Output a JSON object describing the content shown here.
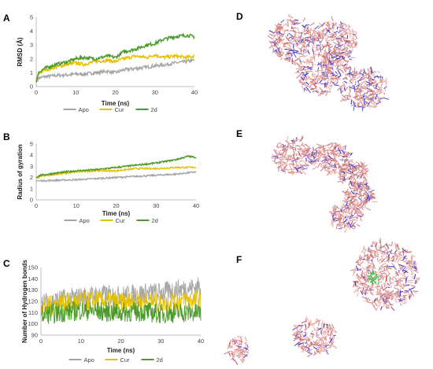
{
  "colors": {
    "apo": "#a6a6a6",
    "cur": "#e5c000",
    "d2": "#4a9a28"
  },
  "panels": {
    "A": "A",
    "B": "B",
    "C": "C",
    "D": "D",
    "E": "E",
    "F": "F"
  },
  "chart_data": [
    {
      "id": "A",
      "type": "line",
      "title": "",
      "xlabel": "Time (ns)",
      "ylabel": "RMSD (Å)",
      "xlim": [
        0,
        40
      ],
      "ylim": [
        0,
        5
      ],
      "xticks": [
        "0",
        "10",
        "20",
        "30",
        "40"
      ],
      "yticks": [
        "0",
        "1",
        "2",
        "3",
        "4",
        "5"
      ],
      "grid": false,
      "legend": "bottom",
      "series": [
        {
          "name": "Apo",
          "color": "#a6a6a6",
          "x": [
            0,
            0.5,
            2,
            5,
            8,
            10,
            12,
            15,
            18,
            20,
            22,
            25,
            28,
            30,
            32,
            35,
            38,
            40
          ],
          "y": [
            0.3,
            0.6,
            0.7,
            0.8,
            0.85,
            0.9,
            0.9,
            1.0,
            1.1,
            1.0,
            1.2,
            1.3,
            1.4,
            1.5,
            1.55,
            1.7,
            1.8,
            1.9
          ]
        },
        {
          "name": "Cur",
          "color": "#e5c000",
          "x": [
            0,
            0.5,
            2,
            5,
            8,
            10,
            12,
            15,
            18,
            20,
            22,
            25,
            28,
            30,
            32,
            35,
            38,
            40
          ],
          "y": [
            0.3,
            0.9,
            1.2,
            1.4,
            1.6,
            1.7,
            1.6,
            1.8,
            1.9,
            1.8,
            2.0,
            2.2,
            2.1,
            2.3,
            2.1,
            2.2,
            2.1,
            2.2
          ]
        },
        {
          "name": "2d",
          "color": "#4a9a28",
          "x": [
            0,
            0.5,
            2,
            5,
            8,
            10,
            12,
            15,
            18,
            20,
            22,
            25,
            28,
            30,
            32,
            35,
            38,
            40
          ],
          "y": [
            0.3,
            1.0,
            1.3,
            1.6,
            1.8,
            2.0,
            2.1,
            2.0,
            2.2,
            2.1,
            2.5,
            2.7,
            3.0,
            3.1,
            3.4,
            3.6,
            3.7,
            3.6
          ]
        }
      ]
    },
    {
      "id": "B",
      "type": "line",
      "title": "",
      "xlabel": "Time (ns)",
      "ylabel": "Radius of gyration",
      "xlim": [
        0,
        40
      ],
      "ylim": [
        0,
        5
      ],
      "xticks": [
        "0",
        "10",
        "20",
        "30",
        "40"
      ],
      "yticks": [
        "0",
        "1",
        "2",
        "3",
        "4",
        "5"
      ],
      "grid": false,
      "legend": "bottom",
      "series": [
        {
          "name": "Apo",
          "color": "#a6a6a6",
          "x": [
            0,
            1,
            5,
            10,
            15,
            20,
            25,
            30,
            35,
            40
          ],
          "y": [
            1.7,
            1.7,
            1.75,
            1.8,
            1.9,
            2.0,
            2.1,
            2.2,
            2.3,
            2.5
          ]
        },
        {
          "name": "Cur",
          "color": "#e5c000",
          "x": [
            0,
            1,
            5,
            10,
            15,
            20,
            25,
            30,
            35,
            40
          ],
          "y": [
            1.9,
            2.1,
            2.3,
            2.5,
            2.6,
            2.6,
            2.8,
            2.8,
            2.9,
            2.9
          ]
        },
        {
          "name": "2d",
          "color": "#4a9a28",
          "x": [
            0,
            1,
            5,
            10,
            15,
            20,
            25,
            30,
            35,
            38,
            40
          ],
          "y": [
            2.0,
            2.2,
            2.4,
            2.6,
            2.7,
            2.9,
            3.1,
            3.3,
            3.6,
            3.9,
            3.8
          ]
        }
      ]
    },
    {
      "id": "C",
      "type": "line",
      "title": "",
      "xlabel": "Time (ns)",
      "ylabel": "Number of Hydrogen bonds",
      "xlim": [
        0,
        40
      ],
      "ylim": [
        90,
        150
      ],
      "xticks": [
        "0",
        "10",
        "20",
        "30",
        "40"
      ],
      "yticks": [
        "90",
        "100",
        "110",
        "120",
        "130",
        "140",
        "150"
      ],
      "grid": false,
      "legend": "bottom",
      "series": [
        {
          "name": "Apo",
          "color": "#a6a6a6",
          "x": [
            0,
            5,
            10,
            15,
            20,
            25,
            30,
            35,
            40
          ],
          "y": [
            118,
            122,
            124,
            126,
            125,
            127,
            128,
            131,
            133
          ]
        },
        {
          "name": "Cur",
          "color": "#e5c000",
          "x": [
            0,
            5,
            10,
            15,
            20,
            25,
            30,
            35,
            40
          ],
          "y": [
            115,
            118,
            120,
            121,
            119,
            120,
            119,
            121,
            122
          ]
        },
        {
          "name": "2d",
          "color": "#4a9a28",
          "x": [
            0,
            5,
            10,
            15,
            20,
            25,
            30,
            35,
            40
          ],
          "y": [
            108,
            110,
            112,
            111,
            110,
            111,
            109,
            110,
            110
          ]
        }
      ]
    }
  ]
}
